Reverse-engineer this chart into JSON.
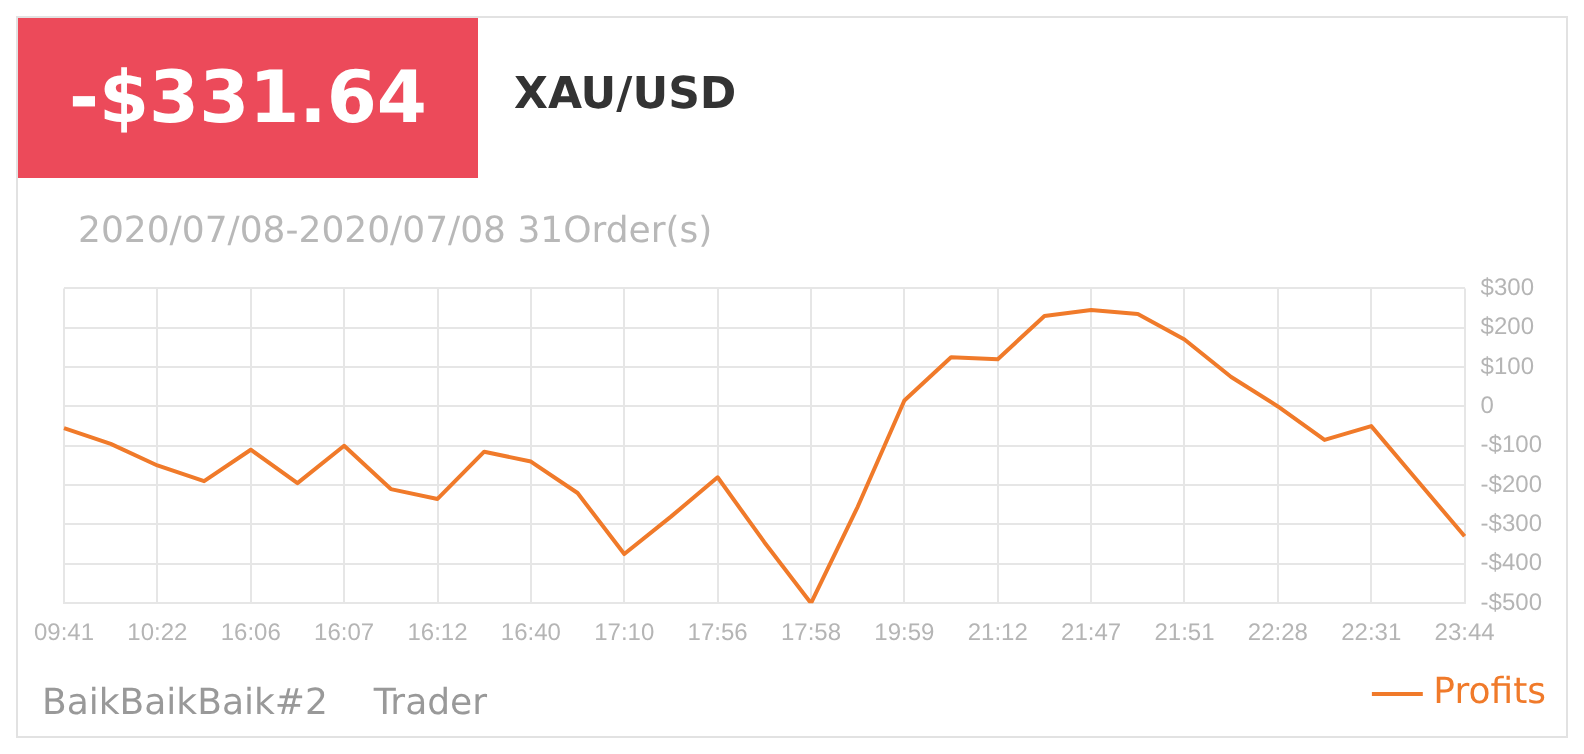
{
  "chart_data": {
    "type": "line",
    "title": "-$331.64",
    "subtitle": "XAU/USD",
    "annotations": [
      "2020/07/08-2020/07/08 31Order(s)",
      "BaikBaikBaik#2    Trader"
    ],
    "categories": [
      "09:41",
      null,
      "10:22",
      null,
      "16:06",
      null,
      "16:07",
      null,
      "16:12",
      null,
      "16:40",
      null,
      "17:10",
      null,
      "17:56",
      null,
      "17:58",
      null,
      "19:59",
      null,
      "21:12",
      null,
      "21:47",
      null,
      "21:51",
      null,
      "22:28",
      null,
      "22:31",
      null,
      "23:44"
    ],
    "series": [
      {
        "name": "Profits",
        "color": "#f07a2a",
        "values": [
          -55,
          -95,
          -150,
          -190,
          -110,
          -195,
          -100,
          -210,
          -235,
          -115,
          -140,
          -220,
          -375,
          -280,
          -180,
          -345,
          -500,
          -255,
          15,
          125,
          120,
          230,
          245,
          235,
          170,
          75,
          0,
          -85,
          -50,
          -190,
          -330
        ]
      }
    ],
    "ylim": [
      -500,
      300
    ],
    "yticks": [
      {
        "value": -500,
        "label": "-$500"
      },
      {
        "value": -400,
        "label": "-$400"
      },
      {
        "value": -300,
        "label": "-$300"
      },
      {
        "value": -200,
        "label": "-$200"
      },
      {
        "value": -100,
        "label": "-$100"
      },
      0,
      {
        "value": 100,
        "label": "$100"
      },
      {
        "value": 200,
        "label": "$200"
      },
      {
        "value": 300,
        "label": "$300"
      }
    ],
    "grid": true,
    "legend": "bottom right",
    "marker": "none",
    "line_style": "solid"
  }
}
